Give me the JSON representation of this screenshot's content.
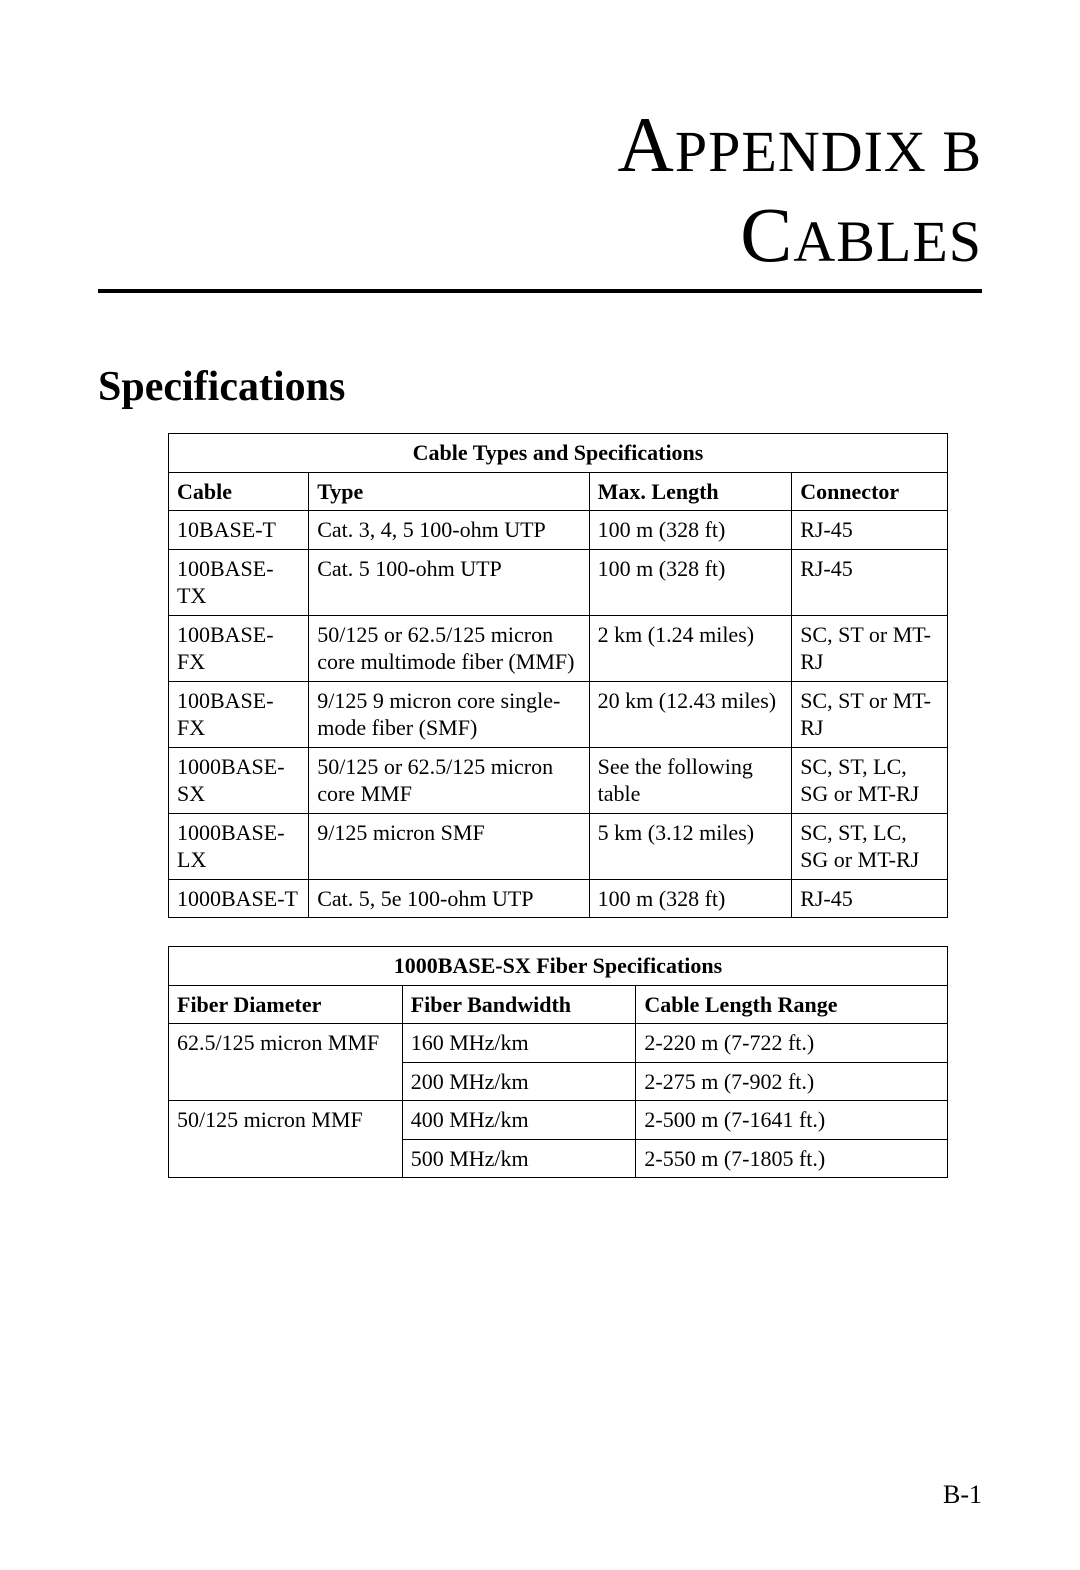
{
  "title": {
    "line1_cap": "A",
    "line1_rest": "PPENDIX",
    "line1_tail": " B",
    "line2_cap": "C",
    "line2_rest": "ABLES"
  },
  "section_heading": "Specifications",
  "table1": {
    "title": "Cable Types and Specifications",
    "columns": [
      "Cable",
      "Type",
      "Max. Length",
      "Connector"
    ],
    "rows": [
      [
        "10BASE-T",
        "Cat. 3, 4, 5 100-ohm UTP",
        "100 m (328 ft)",
        "RJ-45"
      ],
      [
        "100BASE-TX",
        "Cat. 5 100-ohm UTP",
        "100 m (328 ft)",
        "RJ-45"
      ],
      [
        "100BASE-FX",
        "50/125 or 62.5/125 micron core multimode fiber (MMF)",
        "2 km (1.24 miles)",
        "SC, ST or MT-RJ"
      ],
      [
        "100BASE-FX",
        "9/125 9 micron core single-mode fiber (SMF)",
        "20 km (12.43 miles)",
        "SC, ST or MT-RJ"
      ],
      [
        "1000BASE-SX",
        "50/125 or 62.5/125 micron core MMF",
        "See the following table",
        "SC, ST, LC, SG or MT-RJ"
      ],
      [
        "1000BASE-LX",
        "9/125 micron SMF",
        "5 km (3.12 miles)",
        "SC, ST, LC, SG or MT-RJ"
      ],
      [
        "1000BASE-T",
        "Cat. 5, 5e 100-ohm UTP",
        "100 m (328 ft)",
        "RJ-45"
      ]
    ],
    "col_widths": [
      "18%",
      "36%",
      "26%",
      "20%"
    ]
  },
  "table2": {
    "title": "1000BASE-SX Fiber Specifications",
    "columns": [
      "Fiber Diameter",
      "Fiber Bandwidth",
      "Cable Length Range"
    ],
    "rows": [
      {
        "diameter": "62.5/125 micron MMF",
        "bandwidth": "160 MHz/km",
        "range": "2-220 m (7-722 ft.)"
      },
      {
        "diameter": "",
        "bandwidth": "200 MHz/km",
        "range": "2-275 m (7-902 ft.)"
      },
      {
        "diameter": "50/125 micron MMF",
        "bandwidth": "400 MHz/km",
        "range": "2-500 m (7-1641 ft.)"
      },
      {
        "diameter": "",
        "bandwidth": "500 MHz/km",
        "range": "2-550 m (7-1805 ft.)"
      }
    ],
    "col_widths": [
      "30%",
      "30%",
      "40%"
    ]
  },
  "page_number": "B-1",
  "styles": {
    "font_family": "Garamond serif",
    "title_cap_fontsize": 78,
    "title_rest_fontsize": 58,
    "section_heading_fontsize": 42,
    "table_fontsize": 22,
    "page_num_fontsize": 26,
    "border_color": "#000000",
    "background_color": "#ffffff",
    "text_color": "#000000",
    "rule_thickness": 4
  }
}
